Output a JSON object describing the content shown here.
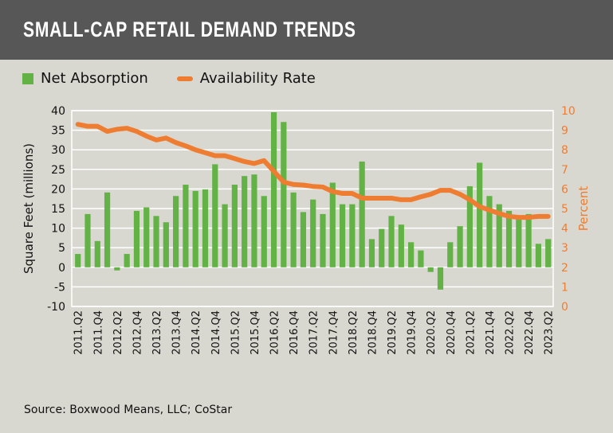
{
  "title": "SMALL-CAP RETAIL DEMAND TRENDS",
  "source": "Source: Boxwood Means, LLC; CoStar",
  "colors": {
    "header": "#575757",
    "background": "#d9d8d0",
    "bars": "#62b246",
    "line": "#ef7d31"
  },
  "chart_data": {
    "type": "bar+line",
    "title": "SMALL-CAP RETAIL DEMAND TRENDS",
    "ylabel": "Square Feet (millions)",
    "y2label": "Percent",
    "ylim": [
      -10,
      40
    ],
    "y2lim": [
      0,
      10
    ],
    "yticks": [
      "-10",
      "-5",
      "0",
      "5",
      "10",
      "15",
      "20",
      "25",
      "30",
      "35",
      "40"
    ],
    "y2ticks": [
      "0",
      "1",
      "2",
      "3",
      "4",
      "5",
      "6",
      "7",
      "8",
      "9",
      "10"
    ],
    "grid": true,
    "legend": "top-left",
    "categories": [
      "2011.Q2",
      "2011.Q3",
      "2011.Q4",
      "2012.Q1",
      "2012.Q2",
      "2012.Q3",
      "2012.Q4",
      "2013.Q1",
      "2013.Q2",
      "2013.Q3",
      "2013.Q4",
      "2014.Q1",
      "2014.Q2",
      "2014.Q3",
      "2014.Q4",
      "2015.Q1",
      "2015.Q2",
      "2015.Q3",
      "2015.Q4",
      "2016.Q1",
      "2016.Q2",
      "2016.Q3",
      "2016.Q4",
      "2017.Q1",
      "2017.Q2",
      "2017.Q3",
      "2017.Q4",
      "2018.Q1",
      "2018.Q2",
      "2018.Q3",
      "2018.Q4",
      "2019.Q1",
      "2019.Q2",
      "2019.Q3",
      "2019.Q4",
      "2020.Q1",
      "2020.Q2",
      "2020.Q3",
      "2020.Q4",
      "2021.Q1",
      "2021.Q2",
      "2021.Q3",
      "2021.Q4",
      "2022.Q1",
      "2022.Q2",
      "2022.Q3",
      "2022.Q4",
      "2023.Q1",
      "2023.Q2"
    ],
    "xticklabels": [
      "2011.Q2",
      "2011.Q4",
      "2012.Q2",
      "2012.Q4",
      "2013.Q2",
      "2013.Q4",
      "2014.Q2",
      "2014.Q4",
      "2015.Q2",
      "2015.Q4",
      "2016.Q2",
      "2016.Q4",
      "2017.Q2",
      "2017.Q4",
      "2018.Q2",
      "2018.Q4",
      "2019.Q2",
      "2019.Q4",
      "2020.Q2",
      "2020.Q4",
      "2021.Q2",
      "2021.Q4",
      "2022.Q2",
      "2022.Q4",
      "2023.Q2"
    ],
    "series": [
      {
        "name": "Net Absorption",
        "type": "bar",
        "axis": "left",
        "values": [
          3.4,
          13.6,
          6.7,
          19.1,
          -0.8,
          3.4,
          14.4,
          15.3,
          13.1,
          11.5,
          18.2,
          21.1,
          19.5,
          19.9,
          26.3,
          16.1,
          21.1,
          23.3,
          23.7,
          18.2,
          39.6,
          37.1,
          19.1,
          14.1,
          17.3,
          13.6,
          21.6,
          16.1,
          16.1,
          27.0,
          7.2,
          9.8,
          13.1,
          10.9,
          6.4,
          4.3,
          -1.2,
          -5.7,
          6.4,
          10.5,
          20.7,
          26.7,
          18.2,
          16.1,
          14.4,
          13.1,
          13.6,
          6.0,
          7.2
        ]
      },
      {
        "name": "Availability Rate",
        "type": "line",
        "axis": "right",
        "values": [
          9.3,
          9.2,
          9.2,
          8.94,
          9.05,
          9.1,
          8.94,
          8.7,
          8.5,
          8.6,
          8.37,
          8.2,
          8.0,
          7.85,
          7.7,
          7.7,
          7.55,
          7.4,
          7.3,
          7.45,
          6.9,
          6.35,
          6.23,
          6.2,
          6.13,
          6.1,
          5.87,
          5.77,
          5.77,
          5.53,
          5.53,
          5.53,
          5.53,
          5.45,
          5.45,
          5.6,
          5.73,
          5.93,
          5.93,
          5.73,
          5.45,
          5.1,
          4.92,
          4.75,
          4.6,
          4.55,
          4.55,
          4.6,
          4.6
        ]
      }
    ]
  }
}
